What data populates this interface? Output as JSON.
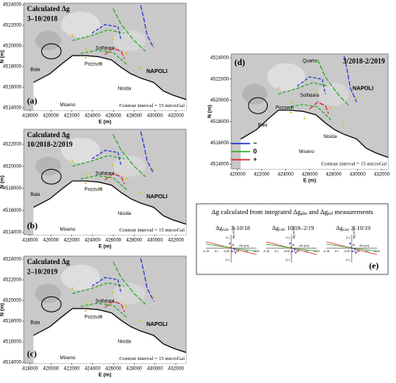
{
  "panels": [
    {
      "title": "Calculated Δg",
      "period": "3–10/2018",
      "tag": "(a)",
      "contour_note": "Contour interval = 15 microGal",
      "places": {
        "solfatara": "Solfatara",
        "pozzuoli": "Pozzuoli",
        "baia": "Baia",
        "nisida": "Nisida",
        "napoli": "NAPOLI",
        "miseno": "Miseno"
      },
      "y_axis_label": "N (m)",
      "x_axis_label": "E (m)",
      "yticks": [
        "4524000",
        "4522000",
        "4520000",
        "4518000",
        "4516000",
        "4514000"
      ],
      "xticks": [
        "418000",
        "420000",
        "422000",
        "424000",
        "426000",
        "428000",
        "430000",
        "432000"
      ]
    },
    {
      "title": "Calculated Δg",
      "period": "10/2018-2/2019",
      "tag": "(b)",
      "contour_note": "Contour interval = 15 microGal",
      "places": {
        "solfatara": "Solfatara",
        "pozzuoli": "Pozzuoli",
        "baia": "Baia",
        "nisida": "Nisida",
        "napoli": "NAPOLI",
        "miseno": "Miseno"
      },
      "y_axis_label": "N (m)",
      "x_axis_label": "E (m)",
      "yticks": [
        "4522000",
        "4520000",
        "4518000",
        "4516000",
        "4514000"
      ],
      "xticks": [
        "418000",
        "420000",
        "422000",
        "424000",
        "426000",
        "428000",
        "430000",
        "432000"
      ]
    },
    {
      "title": "Calculated Δg",
      "period": "2–10/2019",
      "tag": "(c)",
      "contour_note": "Contour interval = 15 microGal",
      "places": {
        "solfatara": "Solfatara",
        "pozzuoli": "Pozzuoli",
        "baia": "Baia",
        "nisida": "Nisida",
        "napoli": "NAPOLI",
        "miseno": "Miseno"
      },
      "y_axis_label": "N (m)",
      "x_axis_label": "E (m)",
      "yticks": [
        "4524000",
        "4522000",
        "4520000",
        "4518000",
        "4516000",
        "4514000"
      ],
      "xticks": [
        "418000",
        "420000",
        "422000",
        "424000",
        "426000",
        "428000",
        "430000",
        "432000"
      ]
    },
    {
      "title": "3/2018-2/2019",
      "tag": "(d)",
      "contour_note": "Contour interval = 15 microGal",
      "places": {
        "quarto": "Quarto",
        "solfatara": "Solfatara",
        "pozzuoli": "Pozzuoli",
        "baia": "Baia",
        "nisida": "Nisida",
        "napoli": "NAPOLI",
        "miseno": "Miseno"
      },
      "legend": [
        "−",
        "0",
        "+"
      ],
      "y_axis_label": "N (m)",
      "x_axis_label": "E (m)",
      "yticks": [
        "4524000",
        "4522000",
        "4520000",
        "4518000",
        "4516000",
        "4514000"
      ],
      "xticks": [
        "420000",
        "422000",
        "424000",
        "426000",
        "428000",
        "430000",
        "432000"
      ]
    }
  ],
  "panel_e": {
    "title": [
      "Δg calculated from integrated Δg",
      "abs",
      " and Δg",
      "rel",
      " measurements"
    ],
    "tag": "(e)",
    "plots": [
      {
        "label": [
          "Δg",
          "calc",
          " 3–10/18"
        ],
        "xlabel": "Δh (m)",
        "ylabel": "Δg (mGal)",
        "xticks": [
          "-0.15",
          "-0.1",
          "-0.05",
          "0.05",
          "0.1",
          "0.15"
        ],
        "yticks": [
          "0.1",
          "-0.1"
        ]
      },
      {
        "label": [
          "Δg",
          "calc",
          " 10/18–2/19"
        ],
        "xlabel": "Δh (m)",
        "ylabel": "Δg (mGal)",
        "xticks": [
          "-0.15",
          "-0.1",
          "-0.05",
          "0.05",
          "0.1",
          "0.15"
        ],
        "yticks": [
          "0.1",
          "-0.1"
        ]
      },
      {
        "label": [
          "Δg",
          "calc",
          " 2–10/19"
        ],
        "xlabel": "Δh (m)",
        "ylabel": "Δg (mGal)",
        "xticks": [
          "-0.15",
          "-0.1",
          "-0.05",
          "0.05",
          "0.1",
          "0.15"
        ],
        "yticks": [
          "0.1",
          "-0.1"
        ]
      }
    ]
  }
}
